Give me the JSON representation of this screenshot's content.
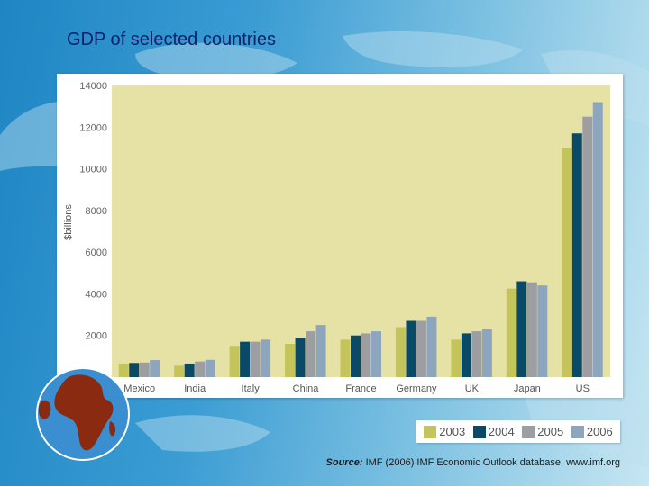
{
  "slide": {
    "title": "GDP of selected countries",
    "source_label": "Source:",
    "source_text": "IMF (2006) IMF Economic Outlook database, www.imf.org"
  },
  "colors": {
    "plot_bg": "#e6e2a6",
    "s2003": "#c4c45a",
    "s2004": "#0b4a66",
    "s2005": "#9c9ea2",
    "s2006": "#8ea6bd"
  },
  "chart_data": {
    "type": "bar",
    "title": "",
    "xlabel": "",
    "ylabel": "$billions",
    "ylim": [
      0,
      14000
    ],
    "yticks": [
      2000,
      4000,
      6000,
      8000,
      10000,
      12000,
      14000
    ],
    "ytick_labels": [
      "2000",
      "4000",
      "6000",
      "8000",
      "10000",
      "12000",
      "14000"
    ],
    "grid": false,
    "legend": "bottom-right",
    "categories": [
      "Mexico",
      "India",
      "Italy",
      "China",
      "France",
      "Germany",
      "UK",
      "Japan",
      "US"
    ],
    "series": [
      {
        "name": "2003",
        "color": "#c4c45a",
        "values": [
          650,
          550,
          1500,
          1600,
          1800,
          2400,
          1800,
          4250,
          11000
        ]
      },
      {
        "name": "2004",
        "color": "#0b4a66",
        "values": [
          680,
          650,
          1700,
          1900,
          2000,
          2700,
          2100,
          4600,
          11700
        ]
      },
      {
        "name": "2005",
        "color": "#9c9ea2",
        "values": [
          700,
          750,
          1700,
          2200,
          2100,
          2700,
          2200,
          4550,
          12500
        ]
      },
      {
        "name": "2006",
        "color": "#8ea6bd",
        "values": [
          820,
          830,
          1800,
          2500,
          2200,
          2900,
          2300,
          4400,
          13200
        ]
      }
    ]
  }
}
